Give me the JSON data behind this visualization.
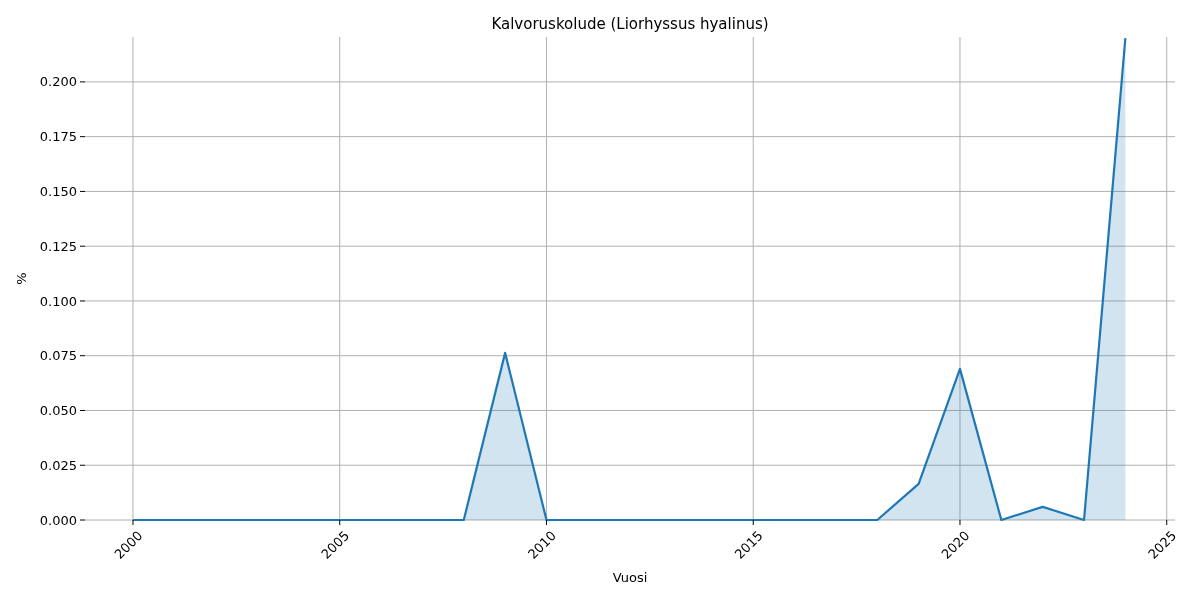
{
  "chart_data": {
    "type": "area",
    "title": "Kalvoruskolude (Liorhyssus hyalinus)",
    "xlabel": "Vuosi",
    "ylabel": "%",
    "x": [
      2000,
      2001,
      2002,
      2003,
      2004,
      2005,
      2006,
      2007,
      2008,
      2009,
      2010,
      2011,
      2012,
      2013,
      2014,
      2015,
      2016,
      2017,
      2018,
      2019,
      2020,
      2021,
      2022,
      2023,
      2024
    ],
    "series": [
      {
        "color": "#1f77b4",
        "values": [
          0,
          0,
          0,
          0,
          0,
          0,
          0,
          0,
          0,
          0.0763,
          0,
          0,
          0,
          0,
          0,
          0,
          0,
          0,
          0,
          0.0165,
          0.069,
          0,
          0.006,
          0,
          0.22
        ]
      }
    ],
    "xlim": [
      1998.84,
      2025.2
    ],
    "xticks": [
      2000,
      2005,
      2010,
      2015,
      2020,
      2025
    ],
    "ylim": [
      0,
      0.2205
    ],
    "yticks": [
      {
        "value": 0,
        "label": "0.000"
      },
      {
        "value": 0.025,
        "label": "0.025"
      },
      {
        "value": 0.05,
        "label": "0.050"
      },
      {
        "value": 0.075,
        "label": "0.075"
      },
      {
        "value": 0.1,
        "label": "0.100"
      },
      {
        "value": 0.125,
        "label": "0.125"
      },
      {
        "value": 0.15,
        "label": "0.150"
      },
      {
        "value": 0.175,
        "label": "0.175"
      },
      {
        "value": 0.2,
        "label": "0.200"
      }
    ],
    "grid": true
  }
}
